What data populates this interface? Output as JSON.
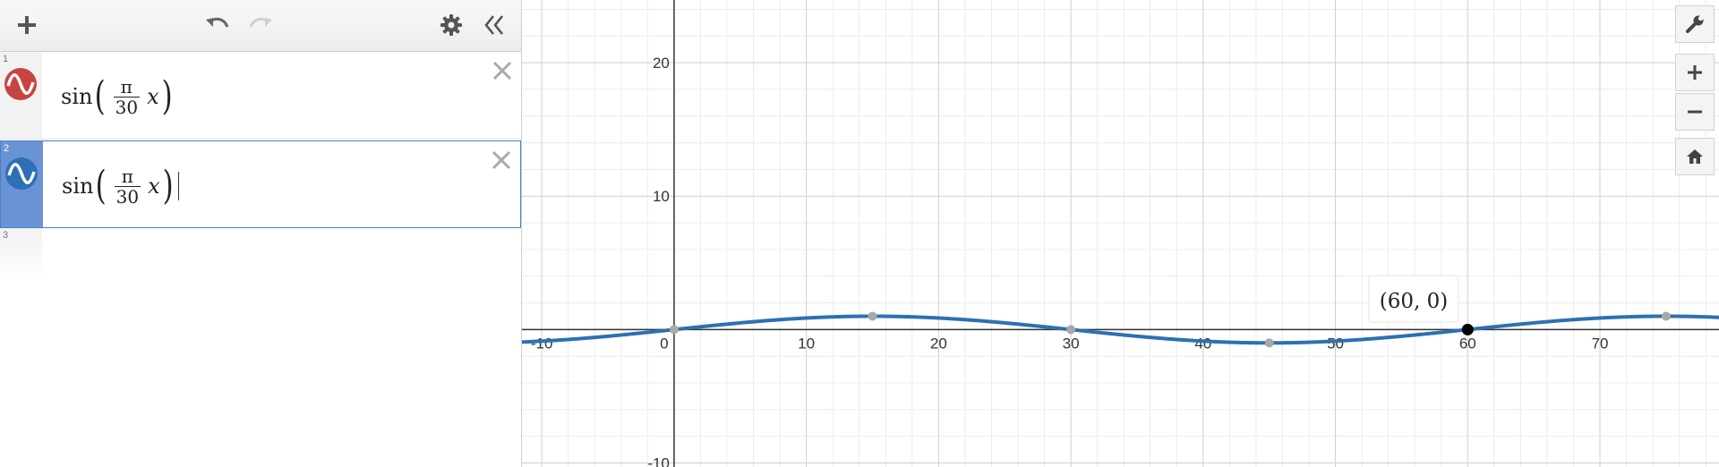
{
  "toolbar": {
    "add_icon": "plus-icon",
    "undo_icon": "undo-icon",
    "redo_icon": "redo-icon",
    "settings_icon": "gear-icon",
    "collapse_icon": "double-chevron-left-icon"
  },
  "expressions": [
    {
      "num": "1",
      "fn": "sin",
      "numerator": "π",
      "denominator": "30",
      "var": "x",
      "color": "#c74440",
      "active": false
    },
    {
      "num": "2",
      "fn": "sin",
      "numerator": "π",
      "denominator": "30",
      "var": "x",
      "color": "#2d70b3",
      "active": true
    },
    {
      "num": "3"
    }
  ],
  "graph": {
    "x_ticks": [
      "-10",
      "0",
      "10",
      "20",
      "30",
      "40",
      "50",
      "60",
      "70"
    ],
    "y_ticks": [
      "20",
      "10",
      "-10"
    ],
    "point_label": "(60, 0)",
    "curve_color": "#2d70b3"
  },
  "chart_data": {
    "type": "line",
    "series": [
      {
        "function": "sin(π/30 x)",
        "color": "#2d70b3"
      }
    ],
    "xlim": [
      -11.5,
      79
    ],
    "ylim": [
      -10.3,
      24.7
    ],
    "grid": true,
    "highlighted_points": [
      {
        "x": 60,
        "y": 0
      }
    ]
  },
  "side_tools": {
    "wrench_icon": "wrench-icon",
    "zoom_in_icon": "plus-icon",
    "zoom_out_icon": "minus-icon",
    "home_icon": "home-icon"
  }
}
